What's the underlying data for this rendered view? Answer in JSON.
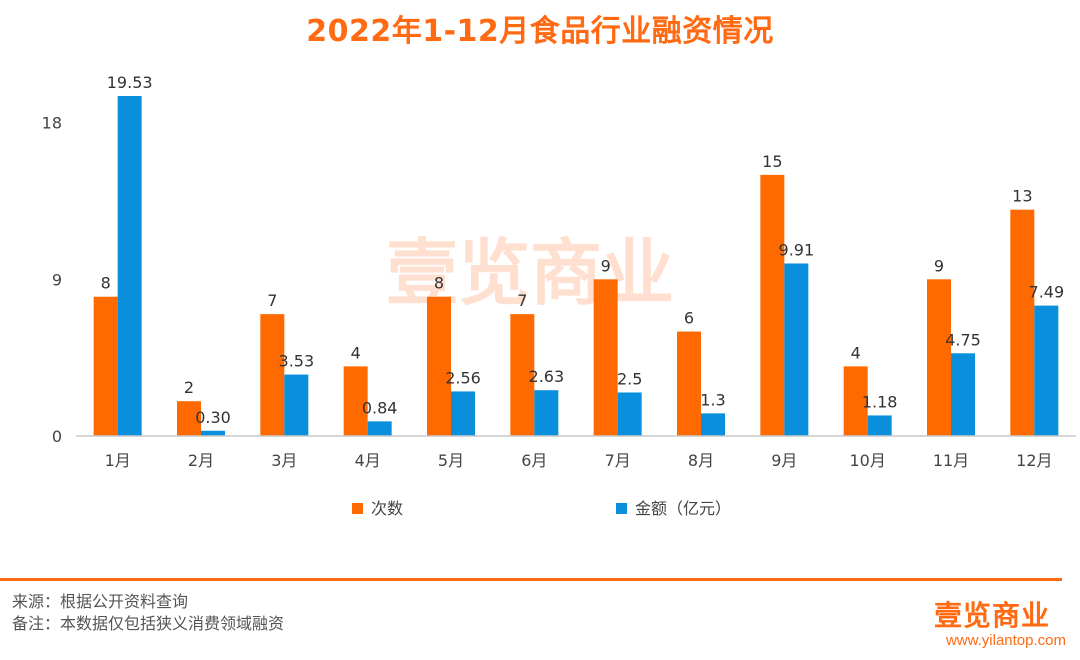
{
  "title": "2022年1-12月食品行业融资情况",
  "chart_data": {
    "type": "bar",
    "title": "2022年1-12月食品行业融资情况",
    "categories": [
      "1月",
      "2月",
      "3月",
      "4月",
      "5月",
      "6月",
      "7月",
      "8月",
      "9月",
      "10月",
      "11月",
      "12月"
    ],
    "series": [
      {
        "name": "次数",
        "color": "#ff6a00",
        "values": [
          8,
          2,
          7,
          4,
          8,
          7,
          9,
          6,
          15,
          4,
          9,
          13
        ],
        "labels": [
          "8",
          "2",
          "7",
          "4",
          "8",
          "7",
          "9",
          "6",
          "15",
          "4",
          "9",
          "13"
        ]
      },
      {
        "name": "金额（亿元）",
        "color": "#0a8fdc",
        "values": [
          19.53,
          0.3,
          3.53,
          0.84,
          2.56,
          2.63,
          2.5,
          1.3,
          9.91,
          1.18,
          4.75,
          7.49
        ],
        "labels": [
          "19.53",
          "0.30",
          "3.53",
          "0.84",
          "2.56",
          "2.63",
          "2.5",
          "1.3",
          "9.91",
          "1.18",
          "4.75",
          "7.49"
        ]
      }
    ],
    "yticks": [
      "0",
      "9",
      "18"
    ],
    "ylim": [
      0,
      19.53
    ],
    "grid": false,
    "legend": "bottom"
  },
  "watermark": "壹览商业",
  "footer": {
    "source": "来源：根据公开资料查询",
    "note": "备注：本数据仅包括狭义消费领域融资",
    "brand": "壹览商业",
    "url": "www.yilantop.com"
  }
}
